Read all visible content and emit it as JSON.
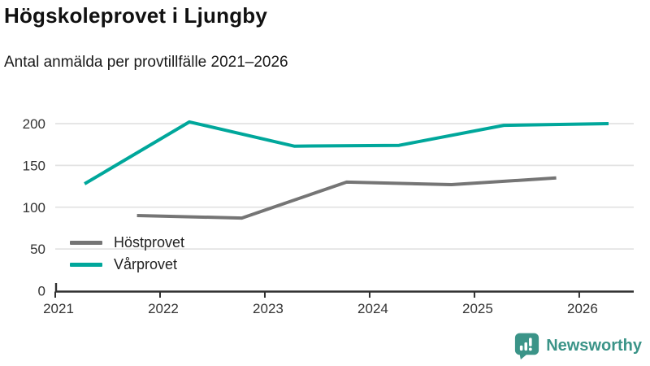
{
  "header": {
    "title": "Högskoleprovet i Ljungby",
    "subtitle": "Antal anmälda per provtillfälle 2021–2026"
  },
  "chart_data": {
    "type": "line",
    "title": "Högskoleprovet i Ljungby",
    "subtitle": "Antal anmälda per provtillfälle 2021–2026",
    "xlabel": "",
    "ylabel": "",
    "xlim": [
      2021,
      2026.52
    ],
    "ylim": [
      0,
      200
    ],
    "x_ticks": [
      2021,
      2022,
      2023,
      2024,
      2025,
      2026
    ],
    "y_ticks": [
      0,
      50,
      100,
      150,
      200
    ],
    "grid": true,
    "legend_position": "inside bottom-left",
    "series": [
      {
        "name": "Höstprovet",
        "color": "#757575",
        "x": [
          2021.78,
          2022.78,
          2023.78,
          2024.78,
          2025.78
        ],
        "values": [
          90,
          87,
          130,
          127,
          135
        ]
      },
      {
        "name": "Vårprovet",
        "color": "#00a79b",
        "x": [
          2021.28,
          2022.28,
          2023.28,
          2024.28,
          2025.28,
          2026.28
        ],
        "values": [
          128,
          202,
          173,
          174,
          198,
          200
        ]
      }
    ]
  },
  "style_colors": {
    "axis": "#2f2f2f",
    "grid": "#e3e3e3",
    "tick_label": "#333333"
  },
  "footer": {
    "brand": "Newsworthy",
    "brand_color": "#3b9488",
    "logo_icon": "bar-chart-speech-bubble-icon"
  }
}
